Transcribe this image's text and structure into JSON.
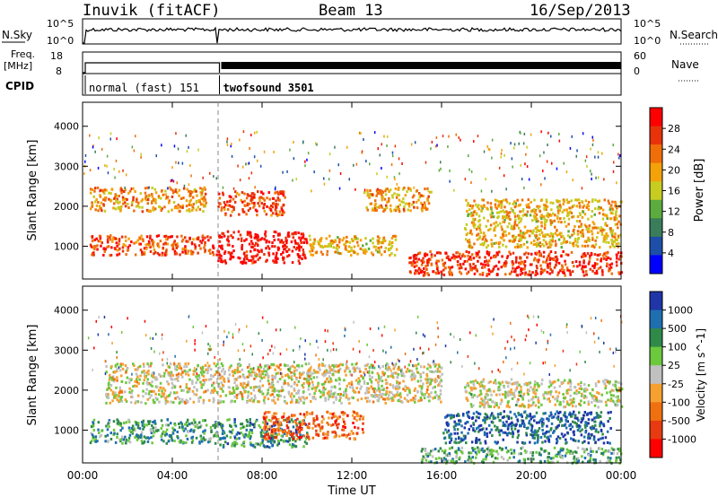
{
  "header": {
    "station": "Inuvik (fitACF)",
    "beam": "Beam 13",
    "date": "16/Sep/2013"
  },
  "top_panels": {
    "nsky_label": "N.Sky",
    "nsky_ticks": [
      "10^5",
      "10^0"
    ],
    "nsearch_label": "N.Search",
    "nsearch_ticks": [
      "10^5",
      "10^0"
    ],
    "freq_label_1": "Freq.",
    "freq_label_2": "[MHz]",
    "freq_ticks": [
      "18",
      "8"
    ],
    "nave_label": "Nave",
    "nave_ticks": [
      "60",
      "0"
    ],
    "cpid_label": "CPID",
    "cpid_modes": [
      {
        "name": "normal (fast) 151",
        "start_hour": 0,
        "end_hour": 6.1
      },
      {
        "name": "twofsound 3501",
        "start_hour": 6.1,
        "end_hour": 24
      }
    ]
  },
  "chart_data": [
    {
      "type": "heatmap",
      "name": "power",
      "ylabel": "Slant Range [km]",
      "xlabel": "Time UT",
      "xlim_hours": [
        0,
        24
      ],
      "ylim_km": [
        180,
        4600
      ],
      "x_ticks": [
        "00:00",
        "04:00",
        "08:00",
        "12:00",
        "16:00",
        "20:00",
        "00:00"
      ],
      "y_ticks": [
        1000,
        2000,
        3000,
        4000
      ],
      "colorbar": {
        "label": "Power [dB]",
        "range": [
          0,
          32
        ],
        "ticks": [
          "4",
          "8",
          "12",
          "16",
          "20",
          "24",
          "28"
        ],
        "colors": [
          "#0000ff",
          "#1e4fa8",
          "#3a7d5a",
          "#5cab3e",
          "#c6cc20",
          "#f3a20a",
          "#f06e0a",
          "#e8320a",
          "#ff0000"
        ]
      },
      "scatter_bands": [
        {
          "t0": 0.3,
          "t1": 6.0,
          "r0": 800,
          "r1": 1300,
          "level": 0.8
        },
        {
          "t0": 6.0,
          "t1": 10.0,
          "r0": 600,
          "r1": 1400,
          "level": 0.95
        },
        {
          "t0": 0.3,
          "t1": 5.5,
          "r0": 1900,
          "r1": 2500,
          "level": 0.65
        },
        {
          "t0": 6.0,
          "t1": 9.0,
          "r0": 1800,
          "r1": 2400,
          "level": 0.8
        },
        {
          "t0": 12.5,
          "t1": 15.5,
          "r0": 1900,
          "r1": 2500,
          "level": 0.65
        },
        {
          "t0": 14.5,
          "t1": 24.0,
          "r0": 300,
          "r1": 900,
          "level": 0.85
        },
        {
          "t0": 17.0,
          "t1": 24.0,
          "r0": 1000,
          "r1": 2200,
          "level": 0.6
        },
        {
          "t0": 10.0,
          "t1": 14.0,
          "r0": 800,
          "r1": 1300,
          "level": 0.6
        }
      ]
    },
    {
      "type": "heatmap",
      "name": "velocity",
      "ylabel": "Slant Range [km]",
      "xlabel": "Time UT",
      "xlim_hours": [
        0,
        24
      ],
      "ylim_km": [
        180,
        4600
      ],
      "x_ticks": [
        "00:00",
        "04:00",
        "08:00",
        "12:00",
        "16:00",
        "20:00",
        "00:00"
      ],
      "y_ticks": [
        1000,
        2000,
        3000,
        4000
      ],
      "colorbar": {
        "label": "Velocity [m s^-1]",
        "ticks": [
          "1000",
          "500",
          "100",
          "25",
          "-25",
          "-100",
          "-500",
          "-1000"
        ],
        "colors": [
          "#1f35a8",
          "#1e6fb0",
          "#2f8a4a",
          "#6cc83c",
          "#c0c0c0",
          "#f6a030",
          "#f07010",
          "#e83a10",
          "#ff0000"
        ]
      },
      "scatter_bands": [
        {
          "t0": 0.3,
          "t1": 6.0,
          "r0": 700,
          "r1": 1300,
          "level": 0.3
        },
        {
          "t0": 6.0,
          "t1": 10.0,
          "r0": 600,
          "r1": 1300,
          "level": 0.25
        },
        {
          "t0": 1.0,
          "t1": 16.0,
          "r0": 1700,
          "r1": 2700,
          "level": 0.52
        },
        {
          "t0": 8.0,
          "t1": 12.5,
          "r0": 800,
          "r1": 1500,
          "level": 0.75
        },
        {
          "t0": 16.0,
          "t1": 23.5,
          "r0": 700,
          "r1": 1500,
          "level": 0.15
        },
        {
          "t0": 17.0,
          "t1": 24.0,
          "r0": 1600,
          "r1": 2300,
          "level": 0.5
        },
        {
          "t0": 15.0,
          "t1": 24.0,
          "r0": 200,
          "r1": 600,
          "level": 0.35
        }
      ]
    }
  ]
}
